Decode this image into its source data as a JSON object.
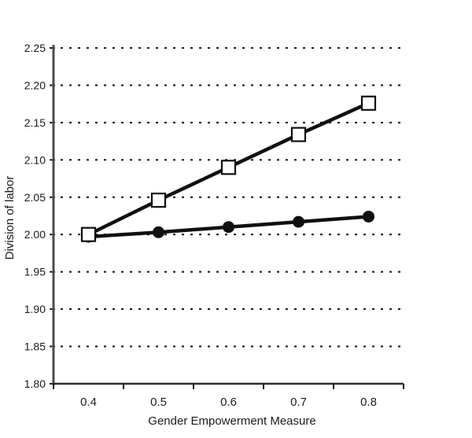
{
  "chart_data": {
    "type": "line",
    "xlabel": "Gender Empowerment Measure",
    "ylabel": "Division of labor",
    "x": [
      0.4,
      0.5,
      0.6,
      0.7,
      0.8
    ],
    "x_tick_labels": [
      "0.4",
      "0.5",
      "0.6",
      "0.7",
      "0.8"
    ],
    "y_tick_values": [
      2.25,
      2.2,
      2.15,
      2.1,
      2.05,
      2.0,
      1.95,
      1.9,
      1.85,
      1.8
    ],
    "y_tick_labels": [
      "2.25",
      "2.20",
      "2.15",
      "2.10",
      "2.05",
      "2.00",
      "1.95",
      "1.90",
      "1.85",
      "1.80"
    ],
    "ylim": [
      1.8,
      2.25
    ],
    "grid": "horizontal-dotted",
    "legend": "none",
    "series": [
      {
        "name": "open-square-series",
        "marker": "open-square",
        "values": [
          2.0,
          2.046,
          2.09,
          2.134,
          2.176
        ]
      },
      {
        "name": "filled-circle-series",
        "marker": "filled-circle",
        "values": [
          1.997,
          2.003,
          2.01,
          2.017,
          2.024
        ]
      }
    ],
    "colors": {
      "stroke": "#101010",
      "open_marker_fill": "#ffffff",
      "background": "#ffffff"
    }
  }
}
